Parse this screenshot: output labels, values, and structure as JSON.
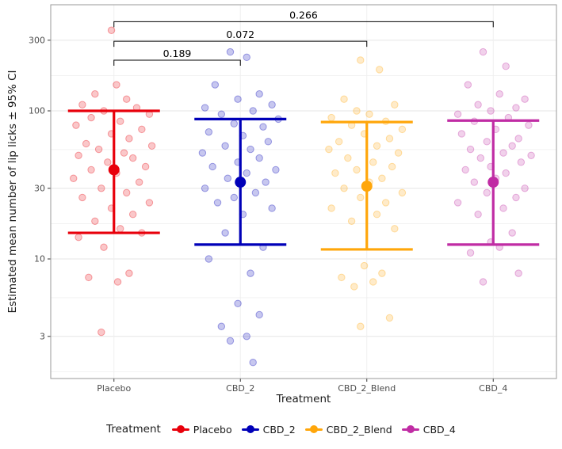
{
  "chart_data": {
    "type": "scatter",
    "title": "",
    "xlabel": "Treatment",
    "ylabel": "Estimated mean number of lip licks ± 95% CI",
    "legend_title": "Treatment",
    "y_scale": "log10",
    "y_ticks": [
      3,
      10,
      30,
      100,
      300
    ],
    "y_minor": [
      1.73,
      5.48,
      17.3,
      54.8,
      173
    ],
    "y_range": [
      1.6,
      520
    ],
    "categories": [
      "Placebo",
      "CBD_2",
      "CBD_2_Blend",
      "CBD_4"
    ],
    "colors": [
      "#e8000b",
      "#0000b8",
      "#ffa60a",
      "#c02ca4"
    ],
    "summary": [
      {
        "group": "Placebo",
        "mean": 40,
        "ci_low": 15,
        "ci_high": 100
      },
      {
        "group": "CBD_2",
        "mean": 33,
        "ci_low": 12.5,
        "ci_high": 88
      },
      {
        "group": "CBD_2_Blend",
        "mean": 31,
        "ci_low": 11.6,
        "ci_high": 84
      },
      {
        "group": "CBD_4",
        "mean": 33,
        "ci_low": 12.5,
        "ci_high": 86
      }
    ],
    "comparisons": [
      {
        "groups": [
          "Placebo",
          "CBD_2"
        ],
        "p": "0.189",
        "y": 220
      },
      {
        "groups": [
          "Placebo",
          "CBD_2_Blend"
        ],
        "p": "0.072",
        "y": 295
      },
      {
        "groups": [
          "Placebo",
          "CBD_4"
        ],
        "p": "0.266",
        "y": 400
      }
    ],
    "points": {
      "Placebo": [
        [
          -0.02,
          350
        ],
        [
          0.02,
          150
        ],
        [
          -0.15,
          130
        ],
        [
          0.1,
          120
        ],
        [
          -0.25,
          110
        ],
        [
          0.18,
          105
        ],
        [
          -0.08,
          100
        ],
        [
          0.28,
          95
        ],
        [
          -0.18,
          90
        ],
        [
          0.05,
          85
        ],
        [
          -0.3,
          80
        ],
        [
          0.22,
          75
        ],
        [
          -0.02,
          70
        ],
        [
          0.12,
          65
        ],
        [
          -0.22,
          60
        ],
        [
          0.3,
          58
        ],
        [
          -0.12,
          55
        ],
        [
          0.08,
          52
        ],
        [
          -0.28,
          50
        ],
        [
          0.15,
          48
        ],
        [
          -0.05,
          45
        ],
        [
          0.25,
          42
        ],
        [
          -0.18,
          40
        ],
        [
          0.02,
          38
        ],
        [
          -0.32,
          35
        ],
        [
          0.2,
          33
        ],
        [
          -0.1,
          30
        ],
        [
          0.1,
          28
        ],
        [
          -0.25,
          26
        ],
        [
          0.28,
          24
        ],
        [
          -0.02,
          22
        ],
        [
          0.15,
          20
        ],
        [
          -0.15,
          18
        ],
        [
          0.05,
          16
        ],
        [
          0.22,
          15
        ],
        [
          -0.28,
          14
        ],
        [
          -0.08,
          12
        ],
        [
          0.12,
          8
        ],
        [
          -0.2,
          7.5
        ],
        [
          0.03,
          7
        ],
        [
          -0.1,
          3.2
        ]
      ],
      "CBD_2": [
        [
          -0.08,
          250
        ],
        [
          0.05,
          230
        ],
        [
          -0.2,
          150
        ],
        [
          0.15,
          130
        ],
        [
          -0.02,
          120
        ],
        [
          0.25,
          110
        ],
        [
          -0.28,
          105
        ],
        [
          0.1,
          100
        ],
        [
          -0.15,
          95
        ],
        [
          0.3,
          88
        ],
        [
          -0.05,
          82
        ],
        [
          0.18,
          78
        ],
        [
          -0.25,
          72
        ],
        [
          0.02,
          68
        ],
        [
          0.22,
          62
        ],
        [
          -0.12,
          58
        ],
        [
          0.08,
          55
        ],
        [
          -0.3,
          52
        ],
        [
          0.15,
          48
        ],
        [
          -0.02,
          45
        ],
        [
          -0.22,
          42
        ],
        [
          0.28,
          40
        ],
        [
          0.05,
          38
        ],
        [
          -0.1,
          35
        ],
        [
          0.2,
          33
        ],
        [
          -0.28,
          30
        ],
        [
          0.12,
          28
        ],
        [
          -0.05,
          26
        ],
        [
          -0.18,
          24
        ],
        [
          0.25,
          22
        ],
        [
          0.02,
          20
        ],
        [
          -0.12,
          15
        ],
        [
          0.18,
          12
        ],
        [
          -0.25,
          10
        ],
        [
          0.08,
          8
        ],
        [
          -0.02,
          5
        ],
        [
          0.15,
          4.2
        ],
        [
          -0.15,
          3.5
        ],
        [
          0.05,
          3
        ],
        [
          -0.08,
          2.8
        ],
        [
          0.1,
          2
        ]
      ],
      "CBD_2_Blend": [
        [
          -0.05,
          220
        ],
        [
          0.1,
          190
        ],
        [
          -0.18,
          120
        ],
        [
          0.22,
          110
        ],
        [
          -0.08,
          100
        ],
        [
          0.02,
          95
        ],
        [
          -0.28,
          90
        ],
        [
          0.15,
          85
        ],
        [
          -0.12,
          80
        ],
        [
          0.28,
          75
        ],
        [
          -0.02,
          70
        ],
        [
          0.18,
          65
        ],
        [
          -0.22,
          62
        ],
        [
          0.08,
          58
        ],
        [
          -0.3,
          55
        ],
        [
          0.25,
          52
        ],
        [
          -0.15,
          48
        ],
        [
          0.05,
          45
        ],
        [
          0.2,
          42
        ],
        [
          -0.08,
          40
        ],
        [
          -0.25,
          38
        ],
        [
          0.12,
          35
        ],
        [
          0.02,
          33
        ],
        [
          -0.18,
          30
        ],
        [
          0.28,
          28
        ],
        [
          -0.05,
          26
        ],
        [
          0.15,
          24
        ],
        [
          -0.28,
          22
        ],
        [
          0.08,
          20
        ],
        [
          -0.12,
          18
        ],
        [
          0.22,
          16
        ],
        [
          -0.02,
          9
        ],
        [
          0.12,
          8
        ],
        [
          -0.2,
          7.5
        ],
        [
          0.05,
          7
        ],
        [
          -0.1,
          6.5
        ],
        [
          0.18,
          4
        ],
        [
          -0.05,
          3.5
        ]
      ],
      "CBD_4": [
        [
          -0.08,
          250
        ],
        [
          0.1,
          200
        ],
        [
          -0.2,
          150
        ],
        [
          0.05,
          130
        ],
        [
          0.25,
          120
        ],
        [
          -0.12,
          110
        ],
        [
          0.18,
          105
        ],
        [
          -0.02,
          100
        ],
        [
          -0.28,
          95
        ],
        [
          0.12,
          90
        ],
        [
          -0.15,
          85
        ],
        [
          0.28,
          80
        ],
        [
          0.02,
          75
        ],
        [
          -0.25,
          70
        ],
        [
          0.2,
          65
        ],
        [
          -0.05,
          62
        ],
        [
          0.15,
          58
        ],
        [
          -0.18,
          55
        ],
        [
          0.08,
          52
        ],
        [
          0.3,
          50
        ],
        [
          -0.1,
          48
        ],
        [
          0.22,
          45
        ],
        [
          -0.02,
          42
        ],
        [
          -0.22,
          40
        ],
        [
          0.1,
          38
        ],
        [
          0.02,
          35
        ],
        [
          -0.15,
          33
        ],
        [
          0.25,
          30
        ],
        [
          -0.05,
          28
        ],
        [
          0.18,
          26
        ],
        [
          -0.28,
          24
        ],
        [
          0.08,
          22
        ],
        [
          -0.12,
          20
        ],
        [
          0.15,
          15
        ],
        [
          -0.02,
          13
        ],
        [
          0.05,
          12
        ],
        [
          -0.18,
          11
        ],
        [
          0.2,
          8
        ],
        [
          -0.08,
          7
        ]
      ]
    },
    "style": {
      "grid_major_color": "#e5e5e5",
      "grid_minor_color": "#f2f2f2",
      "grid_x_color": "#efefef",
      "panel_border_color": "#9a9a9a",
      "tick_color": "#333333",
      "tick_label_color": "#4d4d4d",
      "bracket_color": "#000000"
    }
  }
}
